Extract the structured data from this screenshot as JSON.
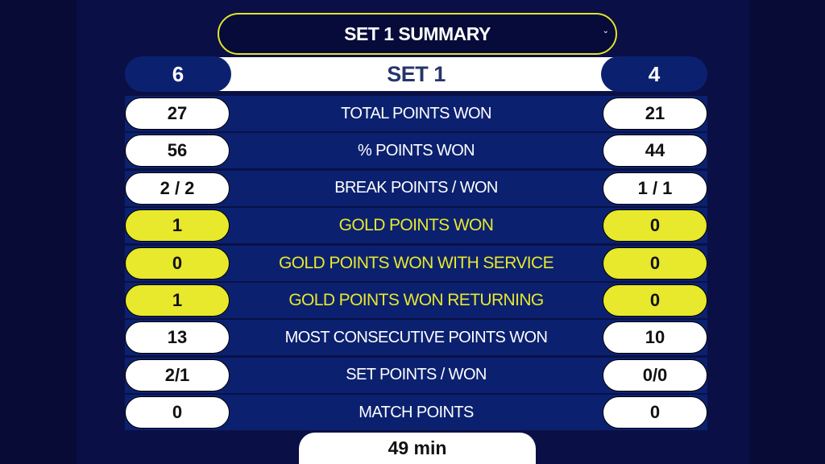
{
  "dropdown": {
    "label": "SET 1 SUMMARY",
    "chevron": "⌄"
  },
  "header": {
    "title": "SET 1",
    "left_games": "6",
    "right_games": "4"
  },
  "stats": [
    {
      "label": "TOTAL POINTS WON",
      "left": "27",
      "right": "21",
      "gold": false
    },
    {
      "label": "% POINTS WON",
      "left": "56",
      "right": "44",
      "gold": false
    },
    {
      "label": "BREAK POINTS / WON",
      "left": "2 / 2",
      "right": "1 / 1",
      "gold": false
    },
    {
      "label": "GOLD POINTS WON",
      "left": "1",
      "right": "0",
      "gold": true
    },
    {
      "label": "GOLD POINTS WON WITH SERVICE",
      "left": "0",
      "right": "0",
      "gold": true
    },
    {
      "label": "GOLD POINTS WON RETURNING",
      "left": "1",
      "right": "0",
      "gold": true
    },
    {
      "label": "MOST CONSECUTIVE POINTS WON",
      "left": "13",
      "right": "10",
      "gold": false
    },
    {
      "label": "SET POINTS / WON",
      "left": "2/1",
      "right": "0/0",
      "gold": false
    },
    {
      "label": "MATCH POINTS",
      "left": "0",
      "right": "0",
      "gold": false
    }
  ],
  "duration": "49 min",
  "colors": {
    "background": "#0a1045",
    "row": "#0b2170",
    "gold": "#e8e82c",
    "white": "#ffffff"
  }
}
